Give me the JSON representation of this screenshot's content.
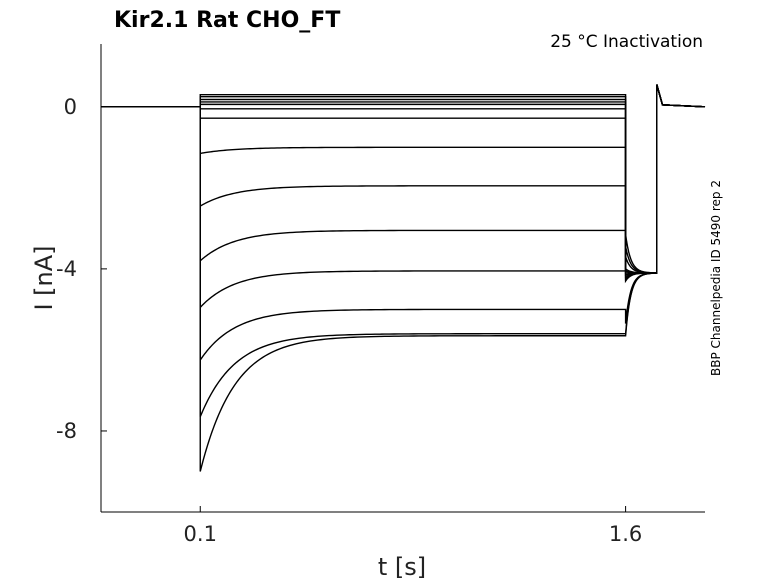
{
  "chart_data": {
    "type": "line",
    "title": "Kir2.1  Rat  CHO_FT",
    "subtitle": "25 °C  Inactivation",
    "side_note": "BBP Channelpedia ID 5490 rep 2",
    "xlabel": "t [s]",
    "ylabel": "I [nA]",
    "xlim": [
      -0.25,
      1.88
    ],
    "ylim": [
      -10.0,
      1.55
    ],
    "xticks": [
      {
        "value": 0.1,
        "label": "0.1"
      },
      {
        "value": 1.6,
        "label": "1.6"
      }
    ],
    "yticks": [
      {
        "value": 0,
        "label": "0"
      },
      {
        "value": -4,
        "label": "-4"
      },
      {
        "value": -8,
        "label": "-8"
      }
    ],
    "grid": false,
    "legend": "none",
    "step_start": 0.1,
    "step_end": 1.6,
    "trace_start": -0.25,
    "trace_end": 1.88,
    "tail_pulse": {
      "t_up": 1.71,
      "t_down": 1.73,
      "peak": 0.55,
      "base": 0.0
    },
    "series": [
      {
        "peak": 0.3,
        "steady": 0.3,
        "tail_start": -4.3
      },
      {
        "peak": 0.25,
        "steady": 0.25,
        "tail_start": -4.25
      },
      {
        "peak": 0.18,
        "steady": 0.18,
        "tail_start": -4.2
      },
      {
        "peak": 0.12,
        "steady": 0.12,
        "tail_start": -4.15
      },
      {
        "peak": 0.06,
        "steady": 0.06,
        "tail_start": -4.1
      },
      {
        "peak": -0.05,
        "steady": -0.05,
        "tail_start": -4.05
      },
      {
        "peak": -0.28,
        "steady": -0.28,
        "tail_start": -4.0
      },
      {
        "peak": -1.15,
        "steady": -1.0,
        "tail_start": -3.7
      },
      {
        "peak": -2.45,
        "steady": -1.95,
        "tail_start": -3.45
      },
      {
        "peak": -3.8,
        "steady": -3.05,
        "tail_start": -3.15
      },
      {
        "peak": -4.95,
        "steady": -4.05,
        "tail_start": -4.05
      },
      {
        "peak": -6.25,
        "steady": -5.0,
        "tail_start": -5.35
      },
      {
        "peak": -7.65,
        "steady": -5.6,
        "tail_start": -5.6
      },
      {
        "peak": -9.0,
        "steady": -5.65,
        "tail_start": -5.65
      }
    ]
  }
}
